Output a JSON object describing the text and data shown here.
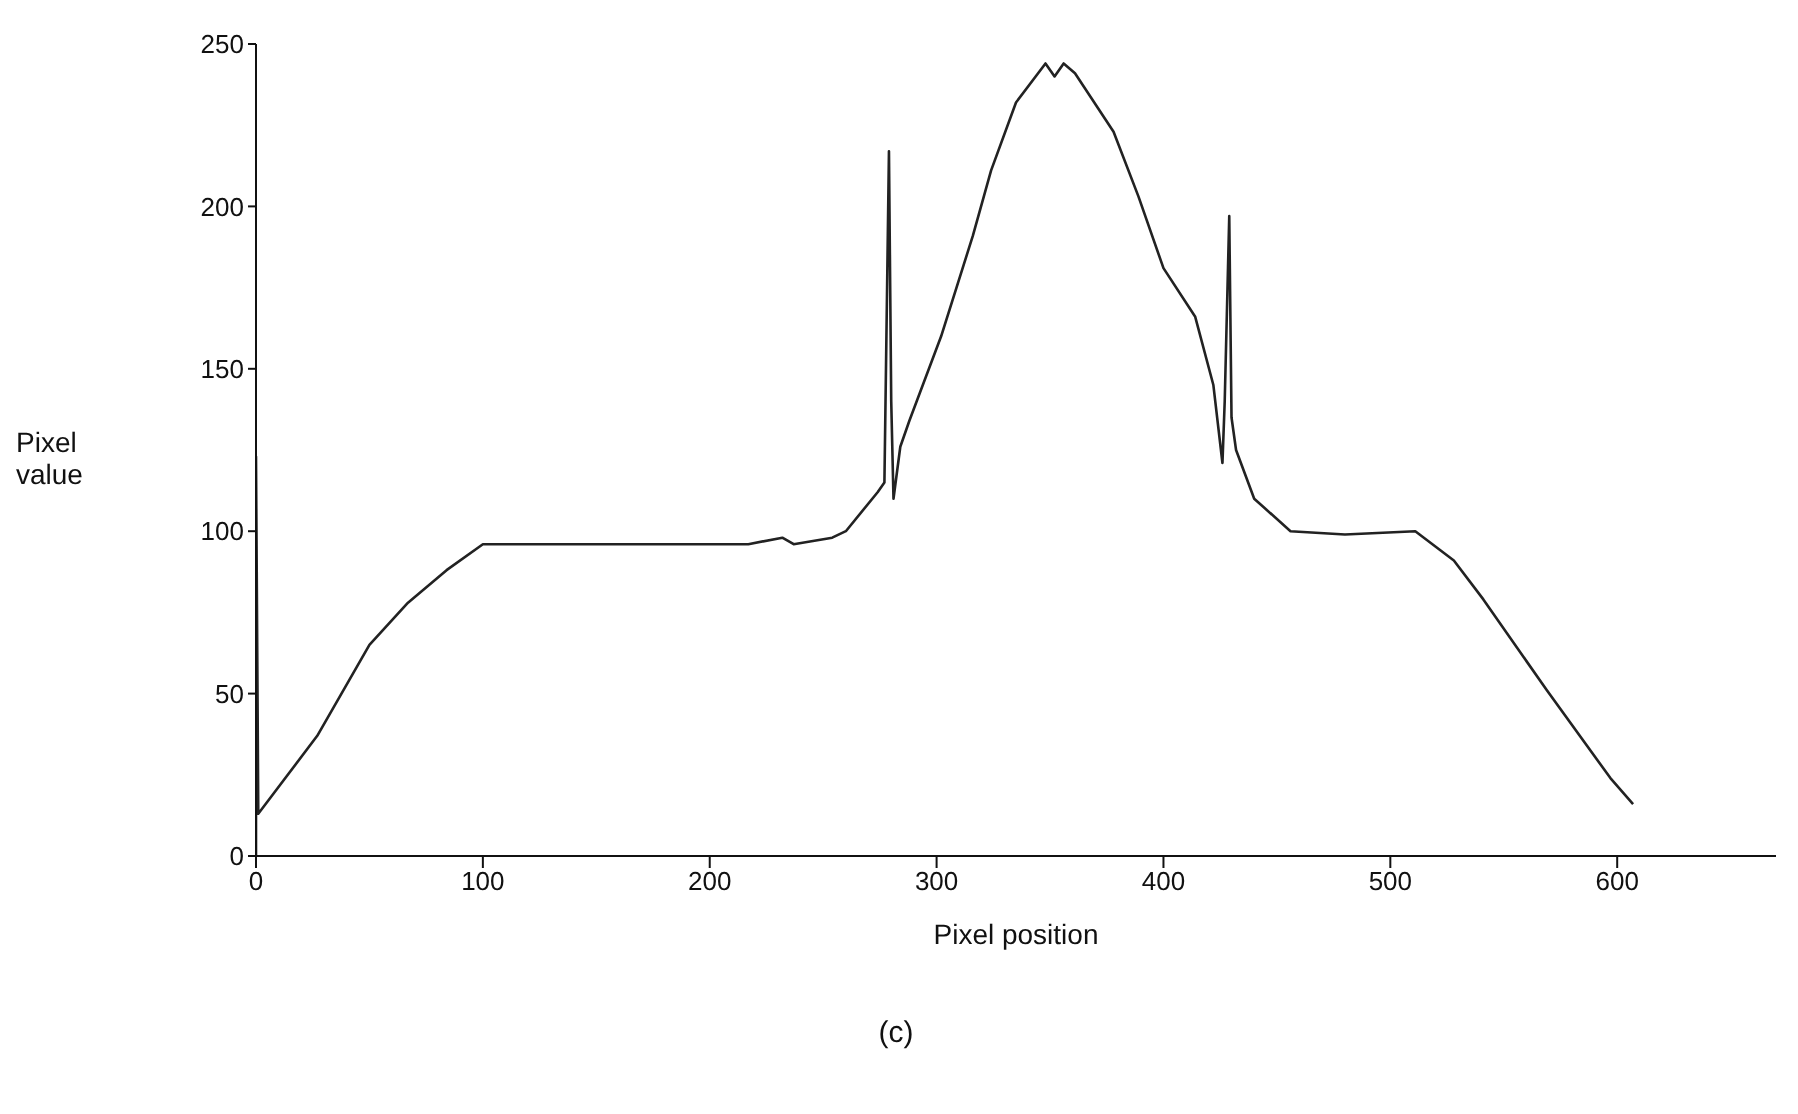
{
  "chart_data": {
    "type": "line",
    "xlabel": "Pixel position",
    "ylabel": "Pixel value",
    "annotations": [
      "(c)"
    ],
    "series": [
      {
        "color": "#222222",
        "x": [
          0,
          0,
          1,
          27,
          50,
          67,
          84,
          100,
          150,
          217,
          232,
          237,
          254,
          260,
          274,
          277,
          279,
          280,
          281,
          284,
          288,
          302,
          316,
          324,
          335,
          348,
          352,
          356,
          361,
          378,
          389,
          400,
          414,
          422,
          426,
          427,
          429,
          430,
          432,
          440,
          456,
          480,
          511,
          528,
          541,
          569,
          597,
          607
        ],
        "values": [
          0,
          123,
          13,
          37,
          65,
          78,
          88,
          96,
          96,
          96,
          98,
          96,
          98,
          100,
          112,
          115,
          217,
          140,
          110,
          126,
          134,
          160,
          191,
          211,
          232,
          244,
          240,
          244,
          241,
          223,
          203,
          181,
          166,
          145,
          121,
          140,
          197,
          135,
          125,
          110,
          100,
          99,
          100,
          91,
          79,
          51,
          24,
          16
        ]
      }
    ],
    "xlim": [
      0,
      670
    ],
    "xticks": [
      0,
      100,
      200,
      300,
      400,
      500,
      600
    ],
    "ylim": [
      0,
      250
    ],
    "yticks": [
      0,
      50,
      100,
      150,
      200,
      250
    ],
    "grid": false,
    "marker": "none",
    "line_style": "solid"
  }
}
